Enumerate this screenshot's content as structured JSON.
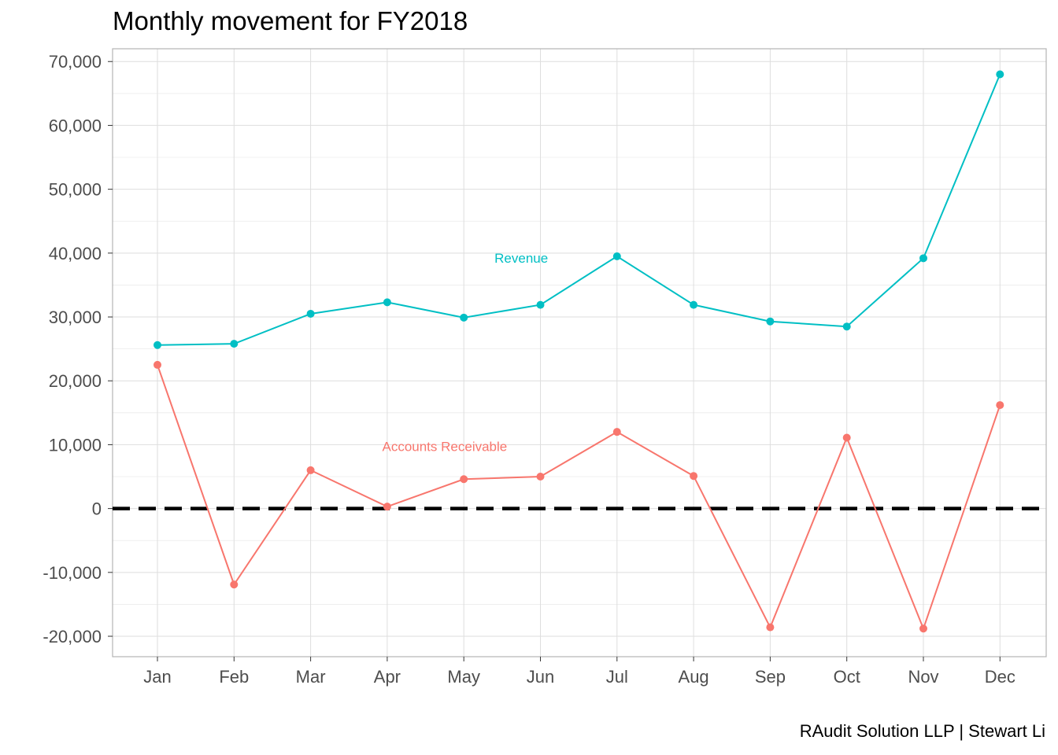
{
  "chart_data": {
    "type": "line",
    "title": "Monthly movement for FY2018",
    "caption": "RAudit Solution LLP | Stewart Li",
    "xlabel": "",
    "ylabel": "",
    "categories": [
      "Jan",
      "Feb",
      "Mar",
      "Apr",
      "May",
      "Jun",
      "Jul",
      "Aug",
      "Sep",
      "Oct",
      "Nov",
      "Dec"
    ],
    "ylim": [
      -23200,
      72000
    ],
    "y_ticks": [
      -20000,
      -10000,
      0,
      10000,
      20000,
      30000,
      40000,
      50000,
      60000,
      70000
    ],
    "y_tick_labels": [
      "-20,000",
      "-10,000",
      "0",
      "10,000",
      "20,000",
      "30,000",
      "40,000",
      "50,000",
      "60,000",
      "70,000"
    ],
    "grid": true,
    "reference_line": {
      "y": 0,
      "style": "dashed",
      "color": "#000000"
    },
    "series": [
      {
        "name": "Revenue",
        "color": "#00BFC4",
        "values": [
          25600,
          25800,
          30500,
          32300,
          29900,
          31900,
          39500,
          31900,
          29300,
          28500,
          39200,
          68000
        ],
        "label_anchor": {
          "category": "May",
          "y": 38500
        }
      },
      {
        "name": "Accounts Receivable",
        "color": "#F8766D",
        "values": [
          22500,
          -11900,
          6000,
          300,
          4600,
          5000,
          12000,
          5100,
          -18600,
          11100,
          -18800,
          16200
        ],
        "label_anchor": {
          "category": "Apr",
          "y": 9000
        }
      }
    ]
  }
}
